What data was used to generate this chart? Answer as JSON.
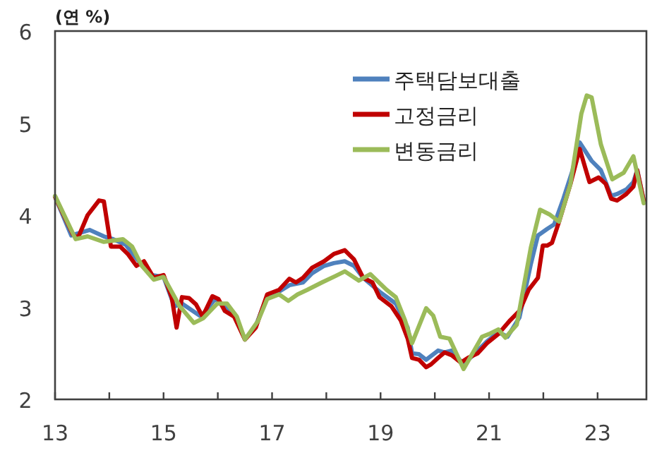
{
  "chart_data": {
    "type": "line",
    "ylabel": "(연 %)",
    "legend": "top",
    "xlim": [
      2013,
      2023.9
    ],
    "ylim": [
      2,
      6
    ],
    "xticks": [
      {
        "value": 2013,
        "label": "13"
      },
      {
        "value": 2014,
        "label": null
      },
      {
        "value": 2015,
        "label": "15"
      },
      {
        "value": 2016,
        "label": null
      },
      {
        "value": 2017,
        "label": "17"
      },
      {
        "value": 2018,
        "label": null
      },
      {
        "value": 2019,
        "label": "19"
      },
      {
        "value": 2020,
        "label": null
      },
      {
        "value": 2021,
        "label": "21"
      },
      {
        "value": 2022,
        "label": null
      },
      {
        "value": 2023,
        "label": "23"
      }
    ],
    "yticks": [
      2,
      3,
      4,
      5,
      6
    ],
    "series": [
      {
        "name": "주택담보대출",
        "color": "#4f81bd",
        "x": [
          2013,
          2013.3,
          2013.64,
          2013.9,
          2014.07,
          2014.3,
          2014.5,
          2014.77,
          2015,
          2015.2,
          2015.34,
          2015.69,
          2015.95,
          2016.13,
          2016.3,
          2016.5,
          2016.7,
          2016.91,
          2017.13,
          2017.32,
          2017.57,
          2017.74,
          2017.96,
          2018.14,
          2018.34,
          2018.51,
          2018.68,
          2018.98,
          2019.28,
          2019.5,
          2019.58,
          2019.71,
          2019.84,
          2020.06,
          2020.18,
          2020.31,
          2020.53,
          2020.74,
          2020.96,
          2021.17,
          2021.34,
          2021.56,
          2021.77,
          2021.9,
          2022.07,
          2022.2,
          2022.37,
          2022.54,
          2022.67,
          2022.89,
          2023.06,
          2023.25,
          2023.36,
          2023.53,
          2023.66,
          2023.73,
          2023.85
        ],
        "values": [
          4.2,
          3.78,
          3.84,
          3.77,
          3.74,
          3.68,
          3.53,
          3.35,
          3.33,
          3.01,
          3.04,
          2.9,
          3.09,
          3.0,
          2.93,
          2.65,
          2.8,
          3.12,
          3.17,
          3.24,
          3.27,
          3.37,
          3.45,
          3.48,
          3.5,
          3.45,
          3.32,
          3.17,
          3.04,
          2.78,
          2.5,
          2.49,
          2.43,
          2.53,
          2.51,
          2.53,
          2.38,
          2.5,
          2.63,
          2.73,
          2.68,
          2.89,
          3.47,
          3.78,
          3.85,
          3.9,
          4.18,
          4.49,
          4.79,
          4.59,
          4.49,
          4.21,
          4.23,
          4.28,
          4.36,
          4.49,
          4.16
        ]
      },
      {
        "name": "고정금리",
        "color": "#c00000",
        "x": [
          2013,
          2013.33,
          2013.42,
          2013.6,
          2013.81,
          2013.9,
          2014.03,
          2014.2,
          2014.34,
          2014.5,
          2014.64,
          2014.82,
          2015,
          2015.15,
          2015.24,
          2015.34,
          2015.47,
          2015.6,
          2015.72,
          2015.9,
          2016.01,
          2016.13,
          2016.3,
          2016.5,
          2016.7,
          2016.91,
          2017.13,
          2017.32,
          2017.44,
          2017.57,
          2017.74,
          2017.96,
          2018.14,
          2018.34,
          2018.51,
          2018.68,
          2018.85,
          2018.98,
          2019.2,
          2019.37,
          2019.5,
          2019.58,
          2019.71,
          2019.84,
          2019.93,
          2020.06,
          2020.18,
          2020.31,
          2020.48,
          2020.61,
          2020.79,
          2020.96,
          2021.17,
          2021.39,
          2021.56,
          2021.73,
          2021.9,
          2021.99,
          2022.07,
          2022.16,
          2022.29,
          2022.5,
          2022.67,
          2022.85,
          2023.02,
          2023.15,
          2023.25,
          2023.36,
          2023.53,
          2023.66,
          2023.73,
          2023.85
        ],
        "values": [
          4.2,
          3.79,
          3.75,
          4.0,
          4.16,
          4.15,
          3.66,
          3.66,
          3.58,
          3.45,
          3.5,
          3.32,
          3.35,
          3.11,
          2.78,
          3.11,
          3.1,
          3.03,
          2.9,
          3.12,
          3.09,
          2.96,
          2.9,
          2.65,
          2.78,
          3.14,
          3.19,
          3.31,
          3.27,
          3.32,
          3.43,
          3.5,
          3.58,
          3.62,
          3.52,
          3.32,
          3.27,
          3.11,
          3.01,
          2.86,
          2.66,
          2.45,
          2.43,
          2.35,
          2.38,
          2.45,
          2.51,
          2.48,
          2.4,
          2.45,
          2.5,
          2.61,
          2.71,
          2.86,
          2.96,
          3.19,
          3.32,
          3.67,
          3.67,
          3.7,
          3.93,
          4.34,
          4.72,
          4.36,
          4.41,
          4.34,
          4.18,
          4.16,
          4.23,
          4.31,
          4.49,
          4.16
        ]
      },
      {
        "name": "변동금리",
        "color": "#9bbb59",
        "x": [
          2013,
          2013.38,
          2013.6,
          2013.9,
          2014.25,
          2014.42,
          2014.6,
          2014.82,
          2015,
          2015.3,
          2015.56,
          2015.73,
          2015.99,
          2016.17,
          2016.35,
          2016.5,
          2016.74,
          2016.91,
          2017.13,
          2017.3,
          2017.47,
          2017.65,
          2017.92,
          2018.17,
          2018.34,
          2018.6,
          2018.81,
          2019.11,
          2019.28,
          2019.45,
          2019.58,
          2019.84,
          2019.97,
          2020.1,
          2020.27,
          2020.53,
          2020.87,
          2021.0,
          2021.17,
          2021.3,
          2021.51,
          2021.77,
          2021.94,
          2022.11,
          2022.29,
          2022.5,
          2022.7,
          2022.8,
          2022.89,
          2023.06,
          2023.27,
          2023.48,
          2023.66,
          2023.85
        ],
        "values": [
          4.21,
          3.74,
          3.77,
          3.71,
          3.74,
          3.66,
          3.45,
          3.3,
          3.33,
          3.01,
          2.83,
          2.88,
          3.04,
          3.04,
          2.9,
          2.65,
          2.85,
          3.09,
          3.14,
          3.07,
          3.14,
          3.19,
          3.27,
          3.34,
          3.39,
          3.29,
          3.36,
          3.19,
          3.11,
          2.86,
          2.61,
          2.99,
          2.91,
          2.68,
          2.66,
          2.33,
          2.68,
          2.71,
          2.76,
          2.67,
          2.81,
          3.65,
          4.06,
          4.01,
          3.93,
          4.34,
          5.1,
          5.3,
          5.28,
          4.77,
          4.39,
          4.46,
          4.64,
          4.13
        ]
      }
    ]
  }
}
